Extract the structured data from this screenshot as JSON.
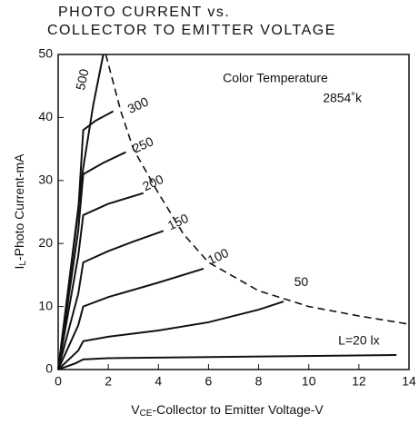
{
  "chart_data": {
    "type": "line",
    "title": [
      "PHOTO CURRENT vs.",
      "COLLECTOR TO EMITTER VOLTAGE"
    ],
    "xlabel": {
      "main": "V",
      "sub": "CE",
      "rest": "-Collector to Emitter Voltage-V"
    },
    "ylabel": {
      "main": "I",
      "sub": "L",
      "rest": "-Photo Current-mA"
    },
    "annotations": [
      "Color Temperature",
      "2854˚k"
    ],
    "xlim": [
      0,
      14
    ],
    "xticks": [
      0,
      2,
      4,
      6,
      8,
      10,
      12,
      14
    ],
    "ylim": [
      0,
      50
    ],
    "yticks": [
      0,
      10,
      20,
      30,
      40,
      50
    ],
    "grid": false,
    "color": "#111111",
    "series": [
      {
        "name": "500",
        "x": [
          0,
          0.5,
          1,
          1.4,
          1.8
        ],
        "values": [
          0,
          16,
          32,
          42,
          50
        ]
      },
      {
        "name": "300",
        "x": [
          0,
          0.8,
          1,
          1.5,
          2.2
        ],
        "values": [
          0,
          25,
          38,
          39.5,
          41
        ]
      },
      {
        "name": "250",
        "x": [
          0,
          0.8,
          1,
          1.8,
          2.7
        ],
        "values": [
          0,
          22,
          31,
          32.8,
          34.5
        ]
      },
      {
        "name": "200",
        "x": [
          0,
          0.8,
          1,
          2,
          3.4
        ],
        "values": [
          0,
          18,
          24.5,
          26.3,
          28
        ]
      },
      {
        "name": "150",
        "x": [
          0,
          0.8,
          1,
          2,
          3,
          4.2
        ],
        "values": [
          0,
          12,
          17,
          18.8,
          20.3,
          22
        ]
      },
      {
        "name": "100",
        "x": [
          0,
          0.8,
          1,
          2,
          4,
          5.8
        ],
        "values": [
          0,
          7,
          10,
          11.5,
          13.8,
          16
        ]
      },
      {
        "name": "50",
        "x": [
          0,
          0.8,
          1,
          2,
          4,
          6,
          8,
          9
        ],
        "values": [
          0,
          3,
          4.5,
          5.2,
          6.2,
          7.5,
          9.5,
          10.8
        ]
      },
      {
        "name": "L=20 lx",
        "x": [
          0,
          0.7,
          1,
          2,
          13.5
        ],
        "values": [
          0,
          1,
          1.6,
          1.8,
          2.3
        ]
      }
    ],
    "dashed_curve": {
      "x": [
        1.9,
        2.5,
        3,
        4,
        5,
        6,
        8,
        10,
        12,
        14
      ],
      "values": [
        50,
        41,
        35,
        28,
        21.5,
        17,
        12.5,
        10,
        8.5,
        7.2
      ]
    }
  }
}
